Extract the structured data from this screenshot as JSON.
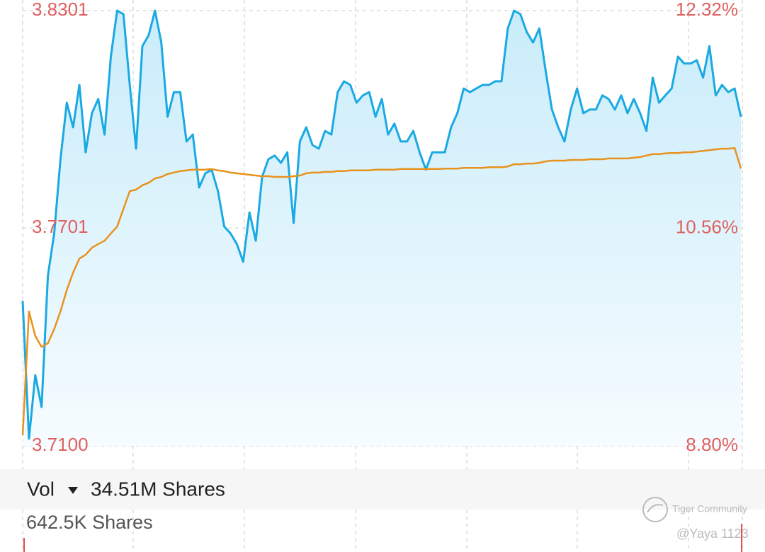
{
  "chart_data": {
    "type": "line",
    "ylim": [
      3.71,
      3.8301
    ],
    "yticks": [
      3.8301,
      3.7701,
      {
        "value": 3.71,
        "label": "3.7100"
      }
    ],
    "y2lim": [
      8.8,
      12.32
    ],
    "y2ticks": [
      {
        "value": 12.32,
        "label": "12.32%"
      },
      {
        "value": 10.56,
        "label": "10.56%"
      },
      {
        "value": 8.8,
        "label": "8.80%"
      }
    ],
    "grid": true,
    "series": [
      {
        "color": "#1aa9e3",
        "area": true,
        "values": [
          3.75,
          3.712,
          3.7295,
          3.7207,
          3.7569,
          3.7686,
          3.7891,
          3.8047,
          3.7979,
          3.8096,
          3.791,
          3.8018,
          3.8057,
          3.7959,
          3.8174,
          3.8301,
          3.8291,
          3.8096,
          3.792,
          3.8203,
          3.8233,
          3.8301,
          3.8213,
          3.8008,
          3.8076,
          3.8076,
          3.794,
          3.7959,
          3.7813,
          3.7852,
          3.7862,
          3.7803,
          3.7705,
          3.7686,
          3.7657,
          3.7608,
          3.7744,
          3.7666,
          3.7842,
          3.7891,
          3.7901,
          3.7881,
          3.791,
          3.7715,
          3.794,
          3.7979,
          3.793,
          3.792,
          3.7969,
          3.7959,
          3.8076,
          3.8106,
          3.8096,
          3.8047,
          3.8067,
          3.8076,
          3.8008,
          3.8057,
          3.7959,
          3.7989,
          3.794,
          3.794,
          3.7969,
          3.791,
          3.7862,
          3.791,
          3.791,
          3.791,
          3.7979,
          3.8018,
          3.8086,
          3.8076,
          3.8086,
          3.8096,
          3.8096,
          3.8106,
          3.8106,
          3.8252,
          3.8301,
          3.8291,
          3.8242,
          3.8213,
          3.8252,
          3.8135,
          3.8028,
          3.7979,
          3.794,
          3.8028,
          3.8086,
          3.8018,
          3.8028,
          3.8028,
          3.8067,
          3.8057,
          3.8028,
          3.8067,
          3.8018,
          3.8057,
          3.8018,
          3.7969,
          3.8116,
          3.8047,
          3.8067,
          3.8086,
          3.8174,
          3.8155,
          3.8155,
          3.8164,
          3.8116,
          3.8203,
          3.8067,
          3.8096,
          3.8076,
          3.8086,
          3.8008
        ]
      },
      {
        "color": "#e8921e",
        "values": [
          3.7129,
          3.7471,
          3.7403,
          3.7373,
          3.7383,
          3.7422,
          3.7471,
          3.753,
          3.7578,
          3.7617,
          3.7627,
          3.7647,
          3.7657,
          3.7666,
          3.7686,
          3.7705,
          3.7754,
          3.7803,
          3.7807,
          3.7819,
          3.7826,
          3.7838,
          3.7842,
          3.785,
          3.7854,
          3.7858,
          3.786,
          3.7862,
          3.7862,
          3.7862,
          3.7864,
          3.786,
          3.7858,
          3.7854,
          3.7852,
          3.785,
          3.7848,
          3.7846,
          3.7844,
          3.7844,
          3.7842,
          3.7842,
          3.7842,
          3.7844,
          3.7846,
          3.7852,
          3.7854,
          3.7854,
          3.7856,
          3.7856,
          3.7858,
          3.7858,
          3.786,
          3.786,
          3.786,
          3.786,
          3.7862,
          3.7862,
          3.7862,
          3.7862,
          3.7864,
          3.7864,
          3.7864,
          3.7864,
          3.7864,
          3.7864,
          3.7864,
          3.7865,
          3.7865,
          3.7865,
          3.7867,
          3.7867,
          3.7867,
          3.7867,
          3.7869,
          3.7869,
          3.7869,
          3.7871,
          3.7877,
          3.7877,
          3.7879,
          3.7879,
          3.7881,
          3.7885,
          3.7887,
          3.7887,
          3.7887,
          3.7889,
          3.7889,
          3.7889,
          3.7891,
          3.7891,
          3.7891,
          3.7893,
          3.7893,
          3.7893,
          3.7893,
          3.7895,
          3.7897,
          3.7901,
          3.7905,
          3.7905,
          3.7907,
          3.7908,
          3.7908,
          3.791,
          3.791,
          3.7912,
          3.7914,
          3.7916,
          3.7918,
          3.792,
          3.792,
          3.7922,
          3.7865
        ]
      }
    ]
  },
  "volume": {
    "label": "Vol",
    "total": "34.51M Shares",
    "current": "642.5K Shares"
  },
  "watermark": {
    "brand": "Tiger Community",
    "user": "@Yaya 1123"
  }
}
